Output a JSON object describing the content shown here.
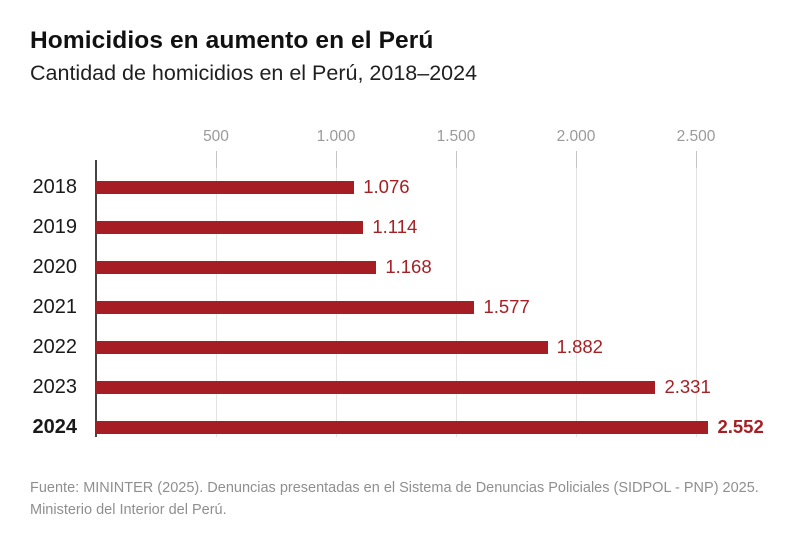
{
  "header": {
    "title": "Homicidios en aumento en el Perú",
    "subtitle": "Cantidad de homicidios en el Perú, 2018–2024"
  },
  "footer": {
    "line1": "Fuente: MININTER (2025). Denuncias presentadas en el Sistema de Denuncias Policiales (SIDPOL - PNP) 2025.",
    "line2": "Ministerio del Interior del Perú."
  },
  "colors": {
    "bar": "#a41e23",
    "value_label": "#a52025",
    "grid": "#e3e3e3",
    "tick": "#c6c6c6",
    "axis": "#454545",
    "year_label": "#1a1a1a",
    "tick_label": "#9a9a9a",
    "muted": "#8f8f8f",
    "title": "#111111",
    "subtitle": "#1f1f1f"
  },
  "chart_data": {
    "type": "bar",
    "orientation": "horizontal",
    "title": "Homicidios en aumento en el Perú",
    "subtitle": "Cantidad de homicidios en el Perú, 2018–2024",
    "categories": [
      "2018",
      "2019",
      "2020",
      "2021",
      "2022",
      "2023",
      "2024"
    ],
    "values": [
      1076,
      1114,
      1168,
      1577,
      1882,
      2331,
      2552
    ],
    "value_labels": [
      "1.076",
      "1.114",
      "1.168",
      "1.577",
      "1.882",
      "2.331",
      "2.552"
    ],
    "emphasized_category": "2024",
    "x_ticks": [
      500,
      1000,
      1500,
      2000,
      2500
    ],
    "x_tick_labels": [
      "500",
      "1.000",
      "1.500",
      "2.000",
      "2.500"
    ],
    "xlim": [
      0,
      2890
    ],
    "grid": true,
    "legend": "none",
    "value_labels_position": "end-of-bar"
  }
}
